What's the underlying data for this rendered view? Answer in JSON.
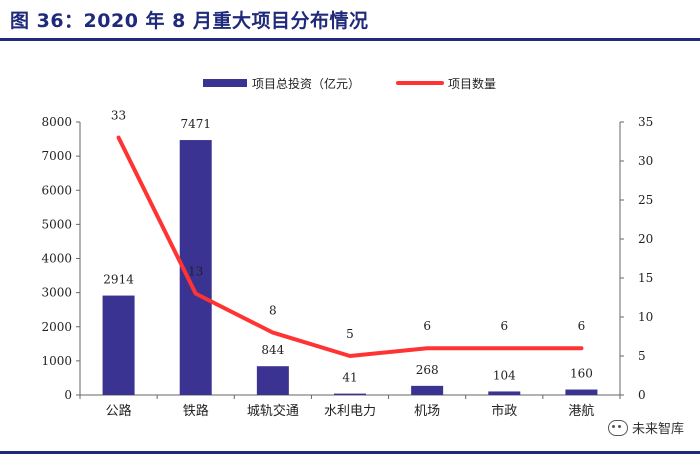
{
  "figure_title": "图 36：2020 年 8 月重大项目分布情况",
  "watermark": {
    "text": "未来智库",
    "icon": "wechat-icon"
  },
  "colors": {
    "bar": "#3b3391",
    "line": "#ff3333",
    "title": "#1f2a7a",
    "axis": "#666666"
  },
  "chart_data": {
    "type": "bar",
    "categories": [
      "公路",
      "铁路",
      "城轨交通",
      "水利电力",
      "机场",
      "市政",
      "港航"
    ],
    "series": [
      {
        "name": "项目总投资（亿元）",
        "type": "bar",
        "axis": "left",
        "values": [
          2914,
          7471,
          844,
          41,
          268,
          104,
          160
        ]
      },
      {
        "name": "项目数量",
        "type": "line",
        "axis": "right",
        "values": [
          33,
          13,
          8,
          5,
          6,
          6,
          6
        ]
      }
    ],
    "y_left": {
      "ylim": [
        0,
        8000
      ],
      "ticks": [
        0,
        1000,
        2000,
        3000,
        4000,
        5000,
        6000,
        7000,
        8000
      ]
    },
    "y_right": {
      "ylim": [
        0,
        35
      ],
      "ticks": [
        0,
        5,
        10,
        15,
        20,
        25,
        30,
        35
      ]
    },
    "legend_position": "top-center",
    "grid": false
  }
}
